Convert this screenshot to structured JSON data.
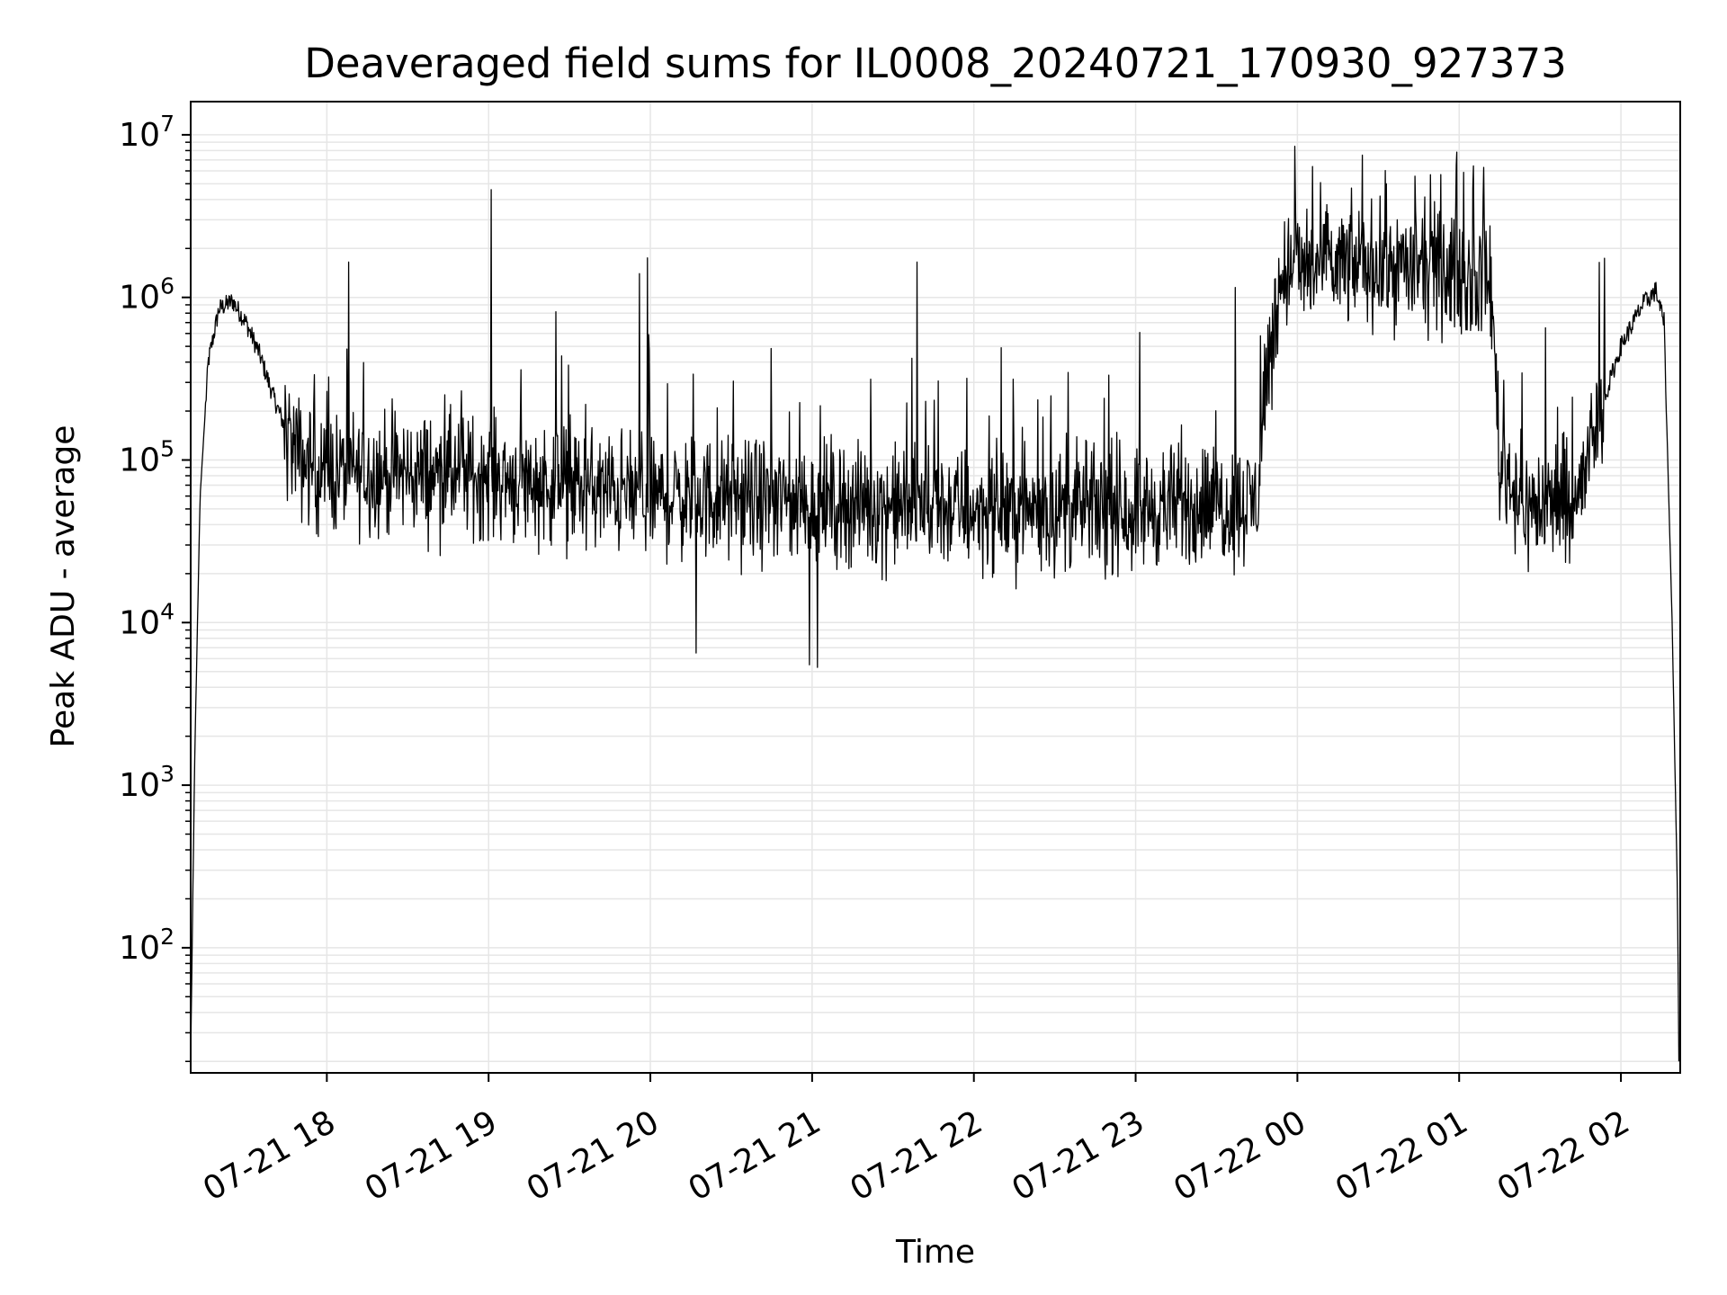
{
  "chart_data": {
    "type": "line",
    "title": "Deaveraged field sums for IL0008_20240721_170930_927373",
    "xlabel": "Time",
    "ylabel": "Peak ADU - average",
    "yscale": "log",
    "grid": true,
    "xlim": [
      "2024-07-21 17:09:30",
      "2024-07-22 02:22:00"
    ],
    "ylim": [
      17,
      16000000
    ],
    "x_ticks": [
      {
        "t": "2024-07-21 18:00",
        "label": "07-21 18"
      },
      {
        "t": "2024-07-21 19:00",
        "label": "07-21 19"
      },
      {
        "t": "2024-07-21 20:00",
        "label": "07-21 20"
      },
      {
        "t": "2024-07-21 21:00",
        "label": "07-21 21"
      },
      {
        "t": "2024-07-21 22:00",
        "label": "07-21 22"
      },
      {
        "t": "2024-07-21 23:00",
        "label": "07-21 23"
      },
      {
        "t": "2024-07-22 00:00",
        "label": "07-22 00"
      },
      {
        "t": "2024-07-22 01:00",
        "label": "07-22 01"
      },
      {
        "t": "2024-07-22 02:00",
        "label": "07-22 02"
      }
    ],
    "y_ticks": [
      {
        "value": 100,
        "base": "10",
        "exp": "2"
      },
      {
        "value": 1000,
        "base": "10",
        "exp": "3"
      },
      {
        "value": 10000,
        "base": "10",
        "exp": "4"
      },
      {
        "value": 100000,
        "base": "10",
        "exp": "5"
      },
      {
        "value": 1000000,
        "base": "10",
        "exp": "6"
      },
      {
        "value": 10000000,
        "base": "10",
        "exp": "7"
      }
    ],
    "line_color": "#000000",
    "grid_color": "#e6e6e6",
    "series": [
      {
        "baseline": [
          [
            "2024-07-21 17:09:30",
            20
          ],
          [
            "2024-07-21 17:10:00",
            90
          ],
          [
            "2024-07-21 17:11:00",
            1500
          ],
          [
            "2024-07-21 17:13:00",
            60000
          ],
          [
            "2024-07-21 17:16:00",
            400000
          ],
          [
            "2024-07-21 17:20:00",
            850000
          ],
          [
            "2024-07-21 17:25:00",
            950000
          ],
          [
            "2024-07-21 17:30:00",
            700000
          ],
          [
            "2024-07-21 17:35:00",
            450000
          ],
          [
            "2024-07-21 17:40:00",
            250000
          ],
          [
            "2024-07-21 17:45:00",
            150000
          ],
          [
            "2024-07-21 17:50:00",
            100000
          ],
          [
            "2024-07-21 18:00:00",
            85000
          ],
          [
            "2024-07-21 19:00:00",
            80000
          ],
          [
            "2024-07-21 19:40:00",
            65000
          ],
          [
            "2024-07-21 20:00:00",
            60000
          ],
          [
            "2024-07-21 21:00:00",
            55000
          ],
          [
            "2024-07-21 22:00:00",
            50000
          ],
          [
            "2024-07-21 23:00:00",
            50000
          ],
          [
            "2024-07-21 23:45:00",
            55000
          ],
          [
            "2024-07-21 23:48:00",
            300000
          ],
          [
            "2024-07-21 23:55:00",
            1500000
          ],
          [
            "2024-07-22 00:30:00",
            1600000
          ],
          [
            "2024-07-22 01:00:00",
            1400000
          ],
          [
            "2024-07-22 01:12:00",
            1200000
          ],
          [
            "2024-07-22 01:15:00",
            100000
          ],
          [
            "2024-07-22 01:25:00",
            50000
          ],
          [
            "2024-07-22 01:45:00",
            60000
          ],
          [
            "2024-07-22 01:50:00",
            150000
          ],
          [
            "2024-07-22 02:00:00",
            500000
          ],
          [
            "2024-07-22 02:08:00",
            900000
          ],
          [
            "2024-07-22 02:13:00",
            1100000
          ],
          [
            "2024-07-22 02:16:00",
            700000
          ],
          [
            "2024-07-22 02:19:00",
            10000
          ],
          [
            "2024-07-22 02:21:00",
            200
          ],
          [
            "2024-07-22 02:21:30",
            20
          ]
        ],
        "noise": [
          {
            "from": "2024-07-21 17:44:00",
            "to": "2024-07-22 01:54:00",
            "spread_decades": 0.55
          }
        ],
        "spikes": [
          [
            "2024-07-21 19:01:00",
            4600000
          ],
          [
            "2024-07-21 19:56:00",
            1400000
          ],
          [
            "2024-07-21 19:59:00",
            1750000
          ],
          [
            "2024-07-21 21:39:00",
            1650000
          ],
          [
            "2024-07-21 23:37:00",
            1150000
          ],
          [
            "2024-07-21 23:59:00",
            8500000
          ],
          [
            "2024-07-22 00:24:00",
            7500000
          ],
          [
            "2024-07-22 00:59:00",
            6500000
          ],
          [
            "2024-07-22 01:09:00",
            6300000
          ],
          [
            "2024-07-22 01:32:00",
            650000
          ],
          [
            "2024-07-21 20:17:00",
            6500
          ],
          [
            "2024-07-21 20:59:00",
            5500
          ],
          [
            "2024-07-21 21:02:00",
            5300
          ]
        ]
      }
    ]
  }
}
